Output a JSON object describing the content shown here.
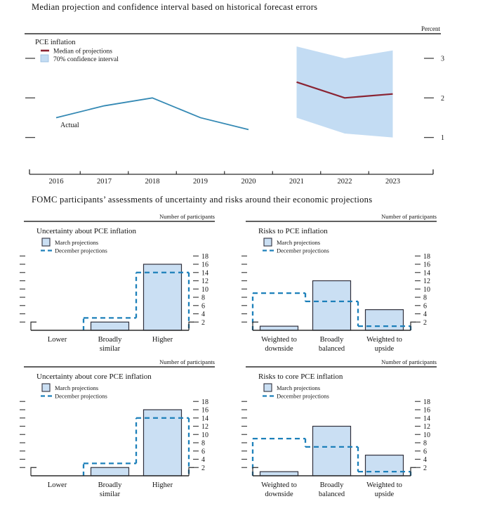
{
  "page": {
    "title1": "Median projection and confidence interval based on historical forecast errors",
    "title2": "FOMC participants’ assessments of uncertainty and risks around their economic projections"
  },
  "colors": {
    "band": "#c3dcf3",
    "median_line": "#8a2332",
    "actual_line": "#3489b4",
    "bar_fill": "#cadff3",
    "bar_stroke": "#30303c",
    "dashed_line": "#1d80ba",
    "axis": "#2b2b2b",
    "text": "#141414"
  },
  "chart_data": [
    {
      "id": "fan",
      "type": "line",
      "title": "PCE inflation",
      "unit_label": "Percent",
      "legend": [
        {
          "label": "Median of projections",
          "swatch": "median-dash"
        },
        {
          "label": "70% confidence interval",
          "swatch": "band-square"
        }
      ],
      "x_tick_labels": [
        "2016",
        "2017",
        "2018",
        "2019",
        "2020",
        "2021",
        "2022",
        "2023"
      ],
      "yticks": [
        1,
        2,
        3
      ],
      "ylim": [
        0,
        3.6
      ],
      "series": [
        {
          "name": "Actual",
          "annotation": "Actual",
          "x": [
            2016,
            2017,
            2018,
            2019,
            2020
          ],
          "values": [
            1.5,
            1.8,
            2.0,
            1.5,
            1.2
          ]
        },
        {
          "name": "Median of projections",
          "x": [
            2021,
            2022,
            2023
          ],
          "values": [
            2.4,
            2.0,
            2.1
          ]
        }
      ],
      "band": {
        "name": "70% confidence interval",
        "x": [
          2021,
          2022,
          2023
        ],
        "upper": [
          3.3,
          3.0,
          3.2
        ],
        "lower": [
          1.5,
          1.1,
          1.0
        ]
      }
    },
    {
      "id": "unc-pce",
      "type": "bar",
      "title": "Uncertainty about PCE inflation",
      "axis_label": "Number of participants",
      "categories": [
        [
          "Lower"
        ],
        [
          "Broadly",
          "similar"
        ],
        [
          "Higher"
        ]
      ],
      "yticks": [
        2,
        4,
        6,
        8,
        10,
        12,
        14,
        16,
        18
      ],
      "series": [
        {
          "name": "March projections",
          "style": "bar",
          "values": [
            0,
            2,
            16
          ]
        },
        {
          "name": "December projections",
          "style": "dashed-step",
          "values": [
            0,
            3,
            14
          ]
        }
      ]
    },
    {
      "id": "risks-pce",
      "type": "bar",
      "title": "Risks to PCE inflation",
      "axis_label": "Number of participants",
      "categories": [
        [
          "Weighted to",
          "downside"
        ],
        [
          "Broadly",
          "balanced"
        ],
        [
          "Weighted to",
          "upside"
        ]
      ],
      "yticks": [
        2,
        4,
        6,
        8,
        10,
        12,
        14,
        16,
        18
      ],
      "series": [
        {
          "name": "March projections",
          "style": "bar",
          "values": [
            1,
            12,
            5
          ]
        },
        {
          "name": "December projections",
          "style": "dashed-step",
          "values": [
            9,
            7,
            1
          ]
        }
      ]
    },
    {
      "id": "unc-core",
      "type": "bar",
      "title": "Uncertainty about core PCE inflation",
      "axis_label": "Number of participants",
      "categories": [
        [
          "Lower"
        ],
        [
          "Broadly",
          "similar"
        ],
        [
          "Higher"
        ]
      ],
      "yticks": [
        2,
        4,
        6,
        8,
        10,
        12,
        14,
        16,
        18
      ],
      "series": [
        {
          "name": "March projections",
          "style": "bar",
          "values": [
            0,
            2,
            16
          ]
        },
        {
          "name": "December projections",
          "style": "dashed-step",
          "values": [
            0,
            3,
            14
          ]
        }
      ]
    },
    {
      "id": "risks-core",
      "type": "bar",
      "title": "Risks to core PCE inflation",
      "axis_label": "Number of participants",
      "categories": [
        [
          "Weighted to",
          "downside"
        ],
        [
          "Broadly",
          "balanced"
        ],
        [
          "Weighted to",
          "upside"
        ]
      ],
      "yticks": [
        2,
        4,
        6,
        8,
        10,
        12,
        14,
        16,
        18
      ],
      "series": [
        {
          "name": "March projections",
          "style": "bar",
          "values": [
            1,
            12,
            5
          ]
        },
        {
          "name": "December projections",
          "style": "dashed-step",
          "values": [
            9,
            7,
            1
          ]
        }
      ]
    }
  ]
}
